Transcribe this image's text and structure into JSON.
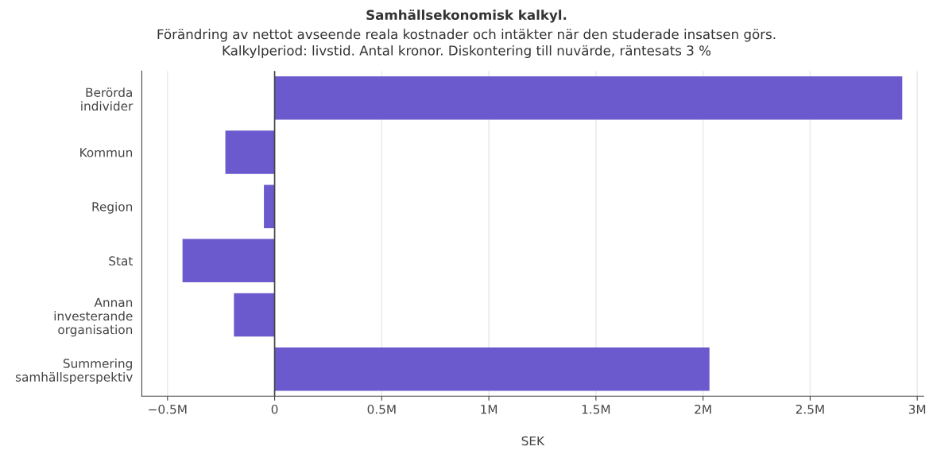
{
  "chart_data": {
    "type": "bar",
    "orientation": "horizontal",
    "title": "Samhällsekonomisk kalkyl.",
    "subtitle": "Förändring av nettot avseende reala kostnader och intäkter när den studerade insatsen görs.\nKalkylperiod: livstid. Antal kronor. Diskontering till nuvärde, räntesats 3 %",
    "xlabel": "SEK",
    "categories": [
      "Berörda\nindivider",
      "Kommun",
      "Region",
      "Stat",
      "Annan\ninvesterande\norganisation",
      "Summering\nsamhällsperspektiv"
    ],
    "values": [
      2930000,
      -230000,
      -50000,
      -430000,
      -190000,
      2030000
    ],
    "color": "#6a5acd",
    "xlim": [
      -620000,
      3030000
    ],
    "xticks": [
      {
        "value": -500000,
        "label": "−0.5M"
      },
      {
        "value": 0,
        "label": "0"
      },
      {
        "value": 500000,
        "label": "0.5M"
      },
      {
        "value": 1000000,
        "label": "1M"
      },
      {
        "value": 1500000,
        "label": "1.5M"
      },
      {
        "value": 2000000,
        "label": "2M"
      },
      {
        "value": 2500000,
        "label": "2.5M"
      },
      {
        "value": 3000000,
        "label": "3M"
      }
    ],
    "grid": "x"
  }
}
